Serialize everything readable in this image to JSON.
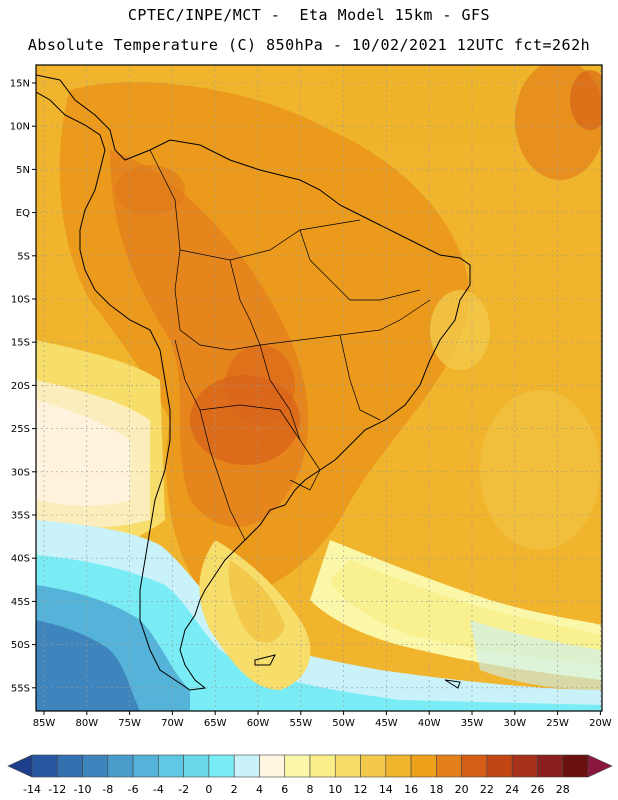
{
  "header": {
    "line1": "CPTEC/INPE/MCT -  Eta Model 15km - GFS",
    "line2": "Absolute Temperature (C) 850hPa - 10/02/2021 12UTC fct=262h"
  },
  "map": {
    "lat_labels": [
      "15N",
      "10N",
      "5N",
      "EQ",
      "5S",
      "10S",
      "15S",
      "20S",
      "25S",
      "30S",
      "35S",
      "40S",
      "45S",
      "50S",
      "55S"
    ],
    "lon_labels": [
      "85W",
      "80W",
      "75W",
      "70W",
      "65W",
      "60W",
      "55W",
      "50W",
      "45W",
      "40W",
      "35W",
      "30W",
      "25W",
      "20W"
    ]
  },
  "colorbar": {
    "labels": [
      "-14",
      "-12",
      "-10",
      "-8",
      "-6",
      "-4",
      "-2",
      "0",
      "2",
      "4",
      "6",
      "8",
      "10",
      "12",
      "14",
      "16",
      "18",
      "20",
      "22",
      "24",
      "26",
      "28"
    ],
    "colors": [
      "#1d3f8c",
      "#2858a0",
      "#3370b0",
      "#3e85be",
      "#4a9ccb",
      "#55b2d8",
      "#5fc8e2",
      "#6ad8ea",
      "#79ecf5",
      "#c9f2fa",
      "#fff6df",
      "#fbf7a9",
      "#f9ee8a",
      "#f7dd6a",
      "#f3c94b",
      "#efb52c",
      "#eda11b",
      "#e4801a",
      "#d55e16",
      "#c14614",
      "#a8311b",
      "#8a1f1f",
      "#6a1010",
      "#8a1740"
    ]
  }
}
